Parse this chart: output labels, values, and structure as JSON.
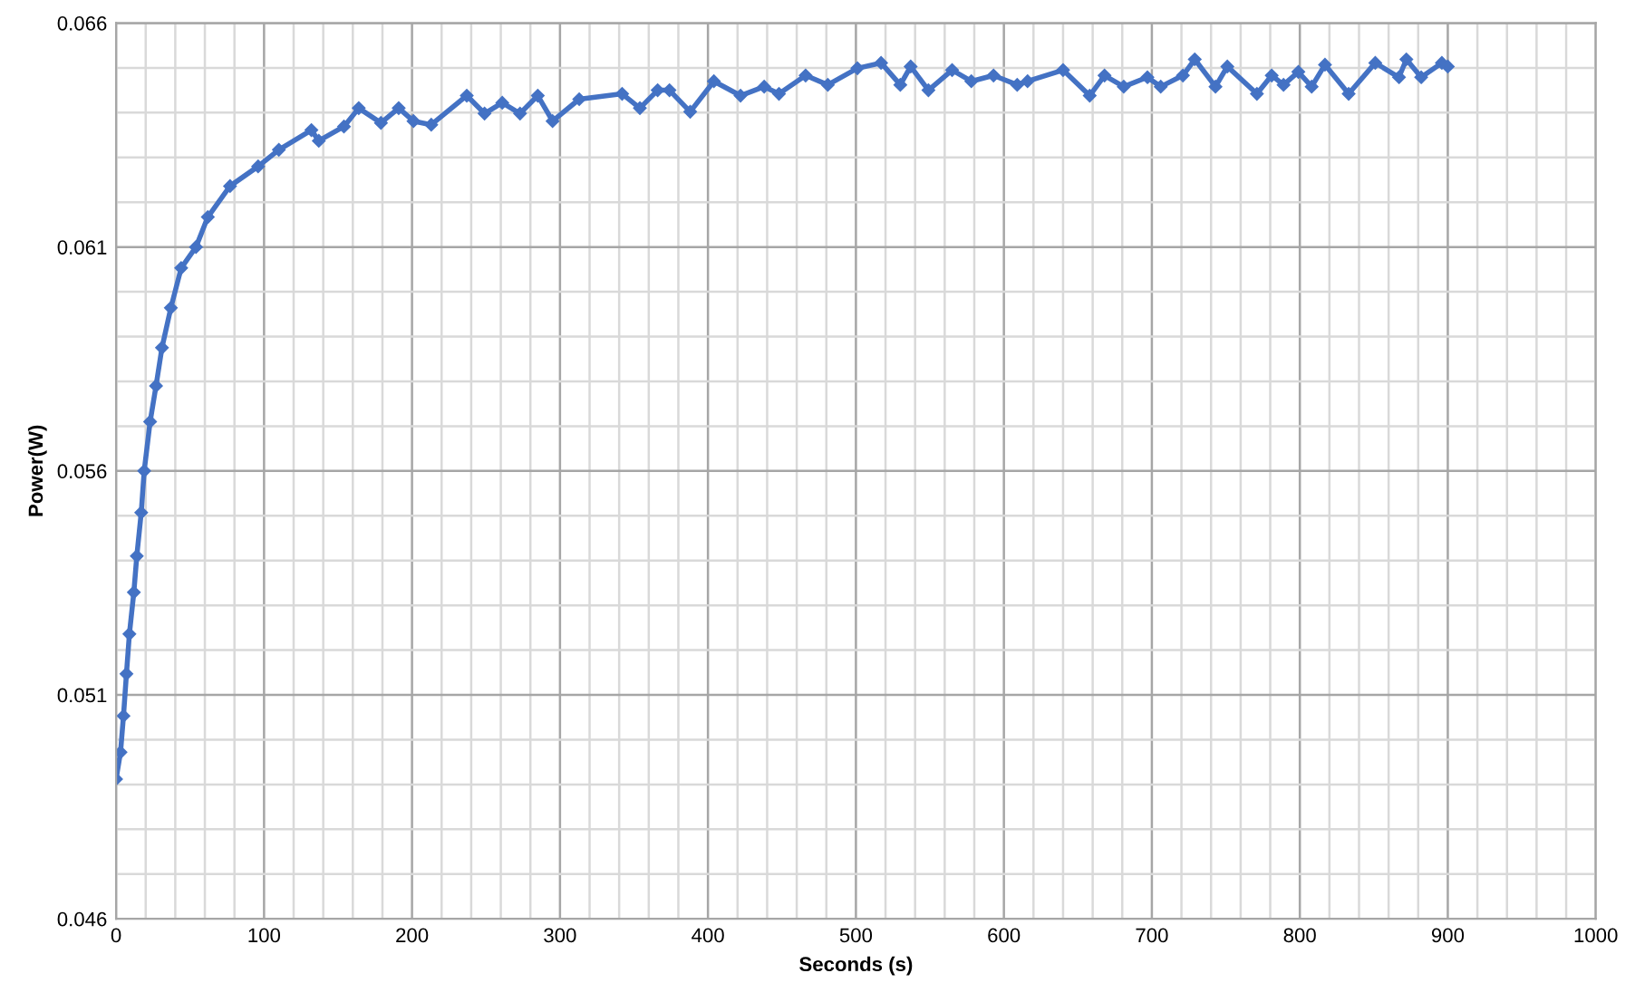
{
  "chart_data": {
    "type": "line",
    "xlabel": "Seconds (s)",
    "ylabel": "Power(W)",
    "xlim": [
      0,
      1000
    ],
    "xticks": [
      0,
      100,
      200,
      300,
      400,
      500,
      600,
      700,
      800,
      900,
      1000
    ],
    "ylim": [
      0.046,
      0.066
    ],
    "yticks": [
      0.046,
      0.051,
      0.056,
      0.061,
      0.066
    ],
    "grid": true,
    "marker": "diamond",
    "line_style": "solid",
    "series": [
      {
        "color": "#4472c4",
        "x": [
          0,
          3,
          5,
          7,
          9,
          12,
          14,
          17,
          19,
          23,
          27,
          31,
          37,
          44,
          54,
          62,
          77,
          96,
          110,
          132,
          137,
          154,
          164,
          179,
          191,
          201,
          213,
          237,
          249,
          261,
          273,
          285,
          295,
          313,
          342,
          354,
          366,
          374,
          388,
          404,
          422,
          438,
          448,
          466,
          481,
          501,
          517,
          530,
          537,
          549,
          565,
          578,
          593,
          609,
          616,
          640,
          658,
          668,
          681,
          697,
          706,
          721,
          729,
          743,
          751,
          771,
          781,
          789,
          799,
          808,
          817,
          833,
          851,
          867,
          872,
          882,
          896,
          900
        ],
        "values": [
          0.04912,
          0.04972,
          0.05053,
          0.05147,
          0.05236,
          0.05329,
          0.0541,
          0.05507,
          0.056,
          0.0571,
          0.0579,
          0.05875,
          0.05964,
          0.06053,
          0.061,
          0.06167,
          0.06236,
          0.0628,
          0.06317,
          0.06361,
          0.06337,
          0.06369,
          0.0641,
          0.06377,
          0.0641,
          0.06381,
          0.06373,
          0.06438,
          0.06398,
          0.06422,
          0.06398,
          0.06438,
          0.06381,
          0.0643,
          0.06442,
          0.0641,
          0.0645,
          0.0645,
          0.06402,
          0.0647,
          0.06438,
          0.06458,
          0.06442,
          0.06483,
          0.06462,
          0.06499,
          0.06511,
          0.06462,
          0.06503,
          0.0645,
          0.06495,
          0.0647,
          0.06483,
          0.06462,
          0.0647,
          0.06495,
          0.06438,
          0.06483,
          0.06458,
          0.06479,
          0.06458,
          0.06483,
          0.06519,
          0.06458,
          0.06503,
          0.06442,
          0.06483,
          0.06462,
          0.06491,
          0.06458,
          0.06507,
          0.06442,
          0.06511,
          0.06479,
          0.06519,
          0.06479,
          0.06511,
          0.06503
        ]
      }
    ]
  }
}
